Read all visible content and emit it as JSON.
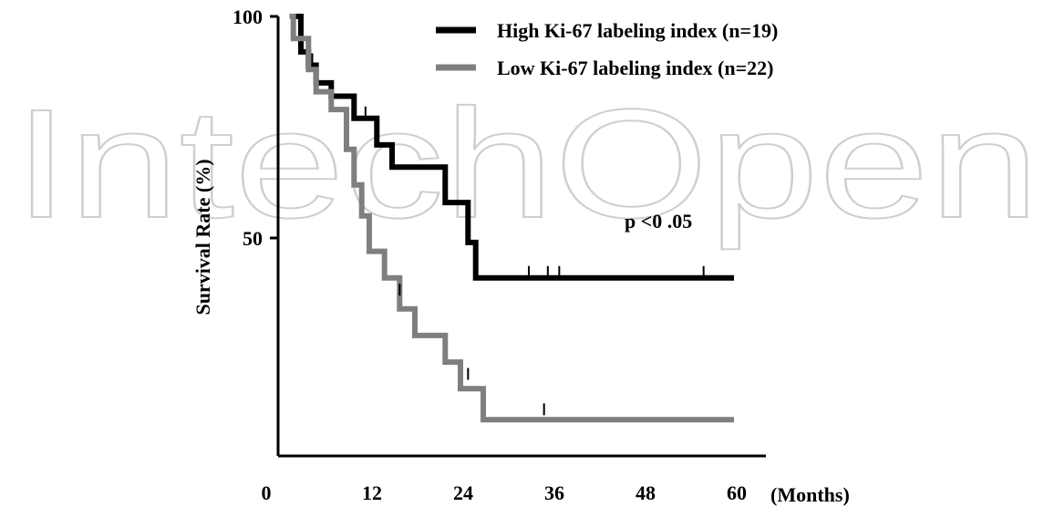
{
  "watermark": "IntechOpen",
  "chart_data": {
    "type": "line",
    "step": true,
    "title": "",
    "ylabel": "Survival Rate (%)",
    "xlabel": "(Months)",
    "xlim": [
      0,
      60
    ],
    "ylim": [
      0,
      100
    ],
    "xticks": [
      "0",
      "12",
      "24",
      "36",
      "48",
      "60"
    ],
    "yticks": [
      "100",
      "50"
    ],
    "grid": false,
    "legend_position": "top-right",
    "annotation": "p <0 .05",
    "series": [
      {
        "name": "High Ki-67 labeling index (n=19)",
        "color": "#000000",
        "points": [
          [
            1.5,
            100
          ],
          [
            3,
            100
          ],
          [
            3,
            95
          ],
          [
            3,
            92
          ],
          [
            4,
            92
          ],
          [
            4,
            89
          ],
          [
            5,
            89
          ],
          [
            5,
            85
          ],
          [
            7,
            85
          ],
          [
            7,
            82
          ],
          [
            10,
            82
          ],
          [
            10,
            77
          ],
          [
            13,
            77
          ],
          [
            13,
            71
          ],
          [
            15,
            71
          ],
          [
            15,
            66
          ],
          [
            22,
            66
          ],
          [
            22,
            58
          ],
          [
            25,
            58
          ],
          [
            25,
            49
          ],
          [
            26,
            49
          ],
          [
            26,
            41
          ],
          [
            60,
            41
          ]
        ],
        "censored": [
          [
            4.5,
            89
          ],
          [
            11.5,
            77
          ],
          [
            33,
            41
          ],
          [
            35.5,
            41
          ],
          [
            37,
            41
          ],
          [
            56,
            41
          ]
        ]
      },
      {
        "name": "Low Ki-67 labeling index (n=22)",
        "color": "#7f7f7f",
        "points": [
          [
            1.5,
            100
          ],
          [
            2,
            100
          ],
          [
            2,
            95
          ],
          [
            4,
            95
          ],
          [
            4,
            88
          ],
          [
            5,
            88
          ],
          [
            5,
            83
          ],
          [
            7,
            83
          ],
          [
            7,
            79
          ],
          [
            9,
            79
          ],
          [
            9,
            70
          ],
          [
            10,
            70
          ],
          [
            10,
            62
          ],
          [
            11,
            62
          ],
          [
            11,
            55
          ],
          [
            12,
            55
          ],
          [
            12,
            47
          ],
          [
            14,
            47
          ],
          [
            14,
            41
          ],
          [
            16,
            41
          ],
          [
            16,
            34
          ],
          [
            18,
            34
          ],
          [
            18,
            28
          ],
          [
            22,
            28
          ],
          [
            22,
            22
          ],
          [
            24,
            22
          ],
          [
            24,
            16
          ],
          [
            27,
            16
          ],
          [
            27,
            9
          ],
          [
            60,
            9
          ]
        ],
        "censored": [
          [
            16,
            37
          ],
          [
            25,
            18
          ],
          [
            35,
            10
          ]
        ]
      }
    ]
  }
}
